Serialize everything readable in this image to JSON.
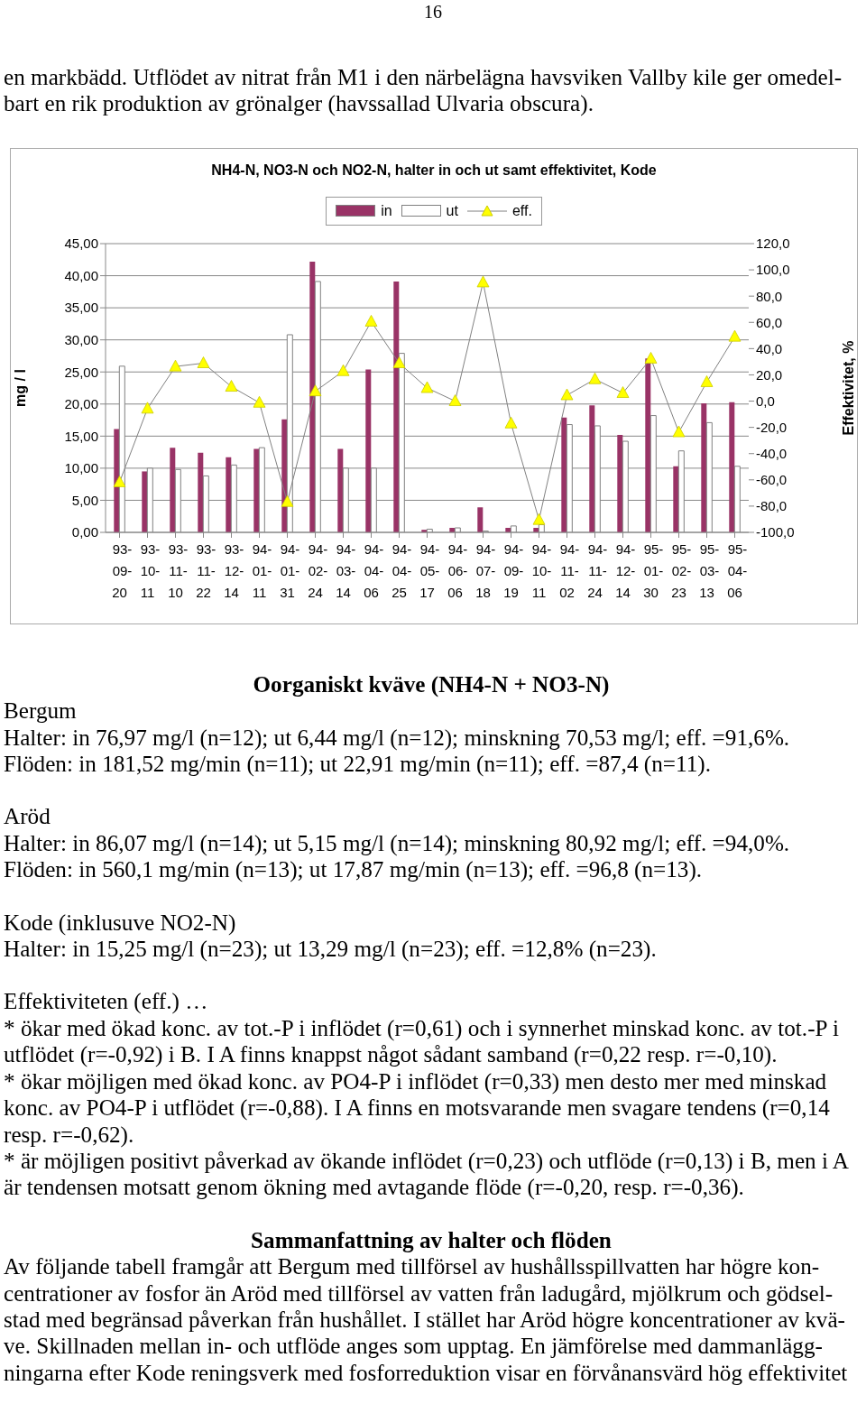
{
  "chart_data": {
    "type": "bar",
    "title": "NH4-N, NO3-N och NO2-N, halter in och ut samt effektivitet, Kode",
    "ylabel": "mg / l",
    "y2label": "Effektivitet, %",
    "categories": [
      "93-09-20",
      "93-10-11",
      "93-11-10",
      "93-11-22",
      "93-12-14",
      "94-01-11",
      "94-01-31",
      "94-02-24",
      "94-03-14",
      "94-04-06",
      "94-04-25",
      "94-05-17",
      "94-06-06",
      "94-07-18",
      "94-09-19",
      "94-10-11",
      "94-11-02",
      "94-11-24",
      "94-12-14",
      "95-01-30",
      "95-02-23",
      "95-03-13",
      "95-04-06"
    ],
    "series": [
      {
        "name": "in",
        "color": "#993366",
        "values": [
          16.1,
          9.5,
          13.2,
          12.4,
          11.7,
          13.0,
          17.6,
          42.2,
          13.0,
          25.4,
          39.1,
          0.4,
          0.7,
          3.9,
          0.7,
          0.7,
          17.9,
          19.8,
          15.2,
          27.1,
          10.3,
          20.1,
          20.3
        ]
      },
      {
        "name": "ut",
        "color": "#ffffff",
        "values": [
          25.9,
          10.0,
          9.8,
          8.8,
          10.5,
          13.2,
          30.8,
          39.1,
          10.0,
          10.0,
          27.9,
          0.5,
          0.7,
          0.2,
          1.0,
          1.2,
          16.8,
          16.6,
          14.2,
          18.2,
          12.7,
          17.1,
          10.3
        ]
      },
      {
        "name": "eff.",
        "type": "line",
        "axis": "y2",
        "color": "#808080",
        "marker": "triangle",
        "values": [
          -61.8,
          -5.7,
          26.4,
          28.9,
          11.0,
          -1.2,
          -76.8,
          7.5,
          22.9,
          60.6,
          28.9,
          10.0,
          0.0,
          90.5,
          -17.0,
          -90.5,
          4.5,
          16.7,
          6.2,
          32.4,
          -23.7,
          14.5,
          49.1
        ]
      }
    ],
    "ylim": [
      0,
      45
    ],
    "yticks": [
      {
        "value": 0,
        "label": "0,00"
      },
      {
        "value": 5,
        "label": "5,00"
      },
      {
        "value": 10,
        "label": "10,00"
      },
      {
        "value": 15,
        "label": "15,00"
      },
      {
        "value": 20,
        "label": "20,00"
      },
      {
        "value": 25,
        "label": "25,00"
      },
      {
        "value": 30,
        "label": "30,00"
      },
      {
        "value": 35,
        "label": "35,00"
      },
      {
        "value": 40,
        "label": "40,00"
      },
      {
        "value": 45,
        "label": "45,00"
      }
    ],
    "y2lim": [
      -100,
      120
    ],
    "y2ticks": [
      {
        "value": -100,
        "label": "-100,0"
      },
      {
        "value": -80,
        "label": "-80,0"
      },
      {
        "value": -60,
        "label": "-60,0"
      },
      {
        "value": -40,
        "label": "-40,0"
      },
      {
        "value": -20,
        "label": "-20,0"
      },
      {
        "value": 0,
        "label": "0,0"
      },
      {
        "value": 20,
        "label": "20,0"
      },
      {
        "value": 40,
        "label": "40,0"
      },
      {
        "value": 60,
        "label": "60,0"
      },
      {
        "value": 80,
        "label": "80,0"
      },
      {
        "value": 100,
        "label": "100,0"
      },
      {
        "value": 120,
        "label": "120,0"
      }
    ],
    "grid": "y",
    "legend": "top",
    "annotations": [
      "16",
      "en markbädd. Utflödet av nitrat från M1 i den närbelägna havsviken Vallby kile ger omedel-",
      "bart en rik produktion av grönalger (havssallad Ulvaria obscura).",
      "Oorganiskt kväve (NH4-N + NO3-N)",
      "Bergum",
      "Halter: in 76,97 mg/l (n=12); ut 6,44 mg/l (n=12); minskning 70,53 mg/l; eff. =91,6%.",
      "Flöden: in 181,52 mg/min (n=11); ut 22,91 mg/min (n=11); eff. =87,4 (n=11).",
      "Aröd",
      "Halter: in 86,07 mg/l (n=14); ut 5,15 mg/l (n=14); minskning 80,92 mg/l; eff. =94,0%.",
      "Flöden: in 560,1 mg/min (n=13); ut 17,87 mg/min (n=13); eff. =96,8 (n=13).",
      "Kode (inklusuve NO2-N)",
      "Halter: in 15,25 mg/l (n=23); ut 13,29 mg/l (n=23); eff. =12,8% (n=23).",
      "Effektiviteten (eff.) …",
      "* ökar med ökad konc. av tot.-P i inflödet (r=0,61) och i synnerhet minskad konc. av tot.-P i",
      "utflödet (r=-0,92) i B. I A finns knappst något sådant samband (r=0,22 resp. r=-0,10).",
      "* ökar möjligen med ökad konc. av PO4-P i inflödet (r=0,33) men desto mer med minskad",
      "konc. av PO4-P i utflödet (r=-0,88). I A finns en motsvarande men svagare tendens (r=0,14",
      "resp. r=-0,62).",
      "* är möjligen positivt påverkad av ökande inflödet (r=0,23) och utflöde (r=0,13) i B, men i A",
      "är tendensen motsatt genom ökning med avtagande flöde (r=-0,20, resp. r=-0,36).",
      "Sammanfattning av halter och flöden",
      "Av följande tabell framgår att Bergum med tillförsel av hushållsspillvatten har högre kon-",
      "centrationer av fosfor än Aröd med tillförsel av vatten från ladugård, mjölkrum och gödsel-",
      "stad med begränsad påverkan från hushållet.  I stället har Aröd högre koncentrationer av kvä-",
      "ve. Skillnaden mellan in- och utflöde anges som upptag. En jämförelse med dammanlägg-",
      "ningarna efter Kode reningsverk med fosforreduktion visar en förvånansvärd hög effektivitet"
    ]
  }
}
